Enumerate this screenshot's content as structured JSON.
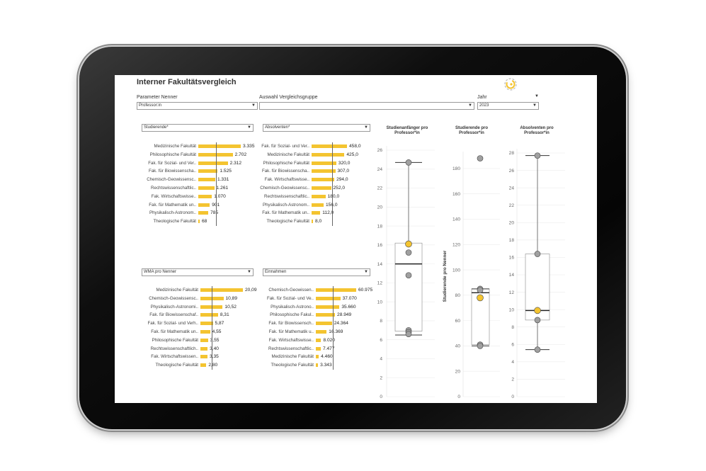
{
  "header": {
    "title": "Interner Fakultätsvergleich"
  },
  "params": {
    "nenner_label": "Parameter Nenner",
    "nenner_value": "Professor:in",
    "gruppe_label": "Auswahl Vergleichsgruppe",
    "gruppe_value": "",
    "jahr_label": "Jahr",
    "jahr_value": "2023"
  },
  "panels": {
    "studierende": {
      "selector": "Studierende*",
      "rows": [
        {
          "label": "Medizinische Fakultät",
          "value": "3.335",
          "num": 3335
        },
        {
          "label": "Philosophische Fakultät",
          "value": "2.702",
          "num": 2702
        },
        {
          "label": "Fak. für Sozial- und Ver..",
          "value": "2.312",
          "num": 2312
        },
        {
          "label": "Fak. für Biowissenscha..",
          "value": "1.525",
          "num": 1525
        },
        {
          "label": "Chemisch-Geowissensc..",
          "value": "1.331",
          "num": 1331
        },
        {
          "label": "Rechtswissenschaftlic..",
          "value": "1.261",
          "num": 1261
        },
        {
          "label": "Fak. Wirtschaftswisse..",
          "value": "1.070",
          "num": 1070
        },
        {
          "label": "Fak. für Mathematik un..",
          "value": "901",
          "num": 901
        },
        {
          "label": "Physikalisch-Astronom..",
          "value": "785",
          "num": 785
        },
        {
          "label": "Theologische Fakultät",
          "value": "68",
          "num": 68
        }
      ]
    },
    "absolventen": {
      "selector": "Absolventen*",
      "rows": [
        {
          "label": "Fak. für Sozial- und Ver..",
          "value": "458,0",
          "num": 458
        },
        {
          "label": "Medizinische Fakultät",
          "value": "425,0",
          "num": 425
        },
        {
          "label": "Philosophische Fakultät",
          "value": "320,0",
          "num": 320
        },
        {
          "label": "Fak. für Biowissenscha..",
          "value": "307,0",
          "num": 307
        },
        {
          "label": "Fak. Wirtschaftswisse..",
          "value": "294,0",
          "num": 294
        },
        {
          "label": "Chemisch-Geowissensc..",
          "value": "252,0",
          "num": 252
        },
        {
          "label": "Rechtswissenschaftlic..",
          "value": "180,0",
          "num": 180
        },
        {
          "label": "Physikalisch-Astronom..",
          "value": "156,0",
          "num": 156
        },
        {
          "label": "Fak. für Mathematik un..",
          "value": "112,0",
          "num": 112
        },
        {
          "label": "Theologische Fakultät",
          "value": "8,0",
          "num": 8
        }
      ]
    },
    "wma": {
      "selector": "WMA pro Nenner",
      "rows": [
        {
          "label": "Medizinische Fakultät",
          "value": "20,09",
          "num": 20.09
        },
        {
          "label": "Chemisch-Geowissensc..",
          "value": "10,89",
          "num": 10.89
        },
        {
          "label": "Physikalisch-Astronomi..",
          "value": "10,52",
          "num": 10.52
        },
        {
          "label": "Fak. für Biowissenschaf..",
          "value": "8,31",
          "num": 8.31
        },
        {
          "label": "Fak. für Sozial- und Verh..",
          "value": "5,87",
          "num": 5.87
        },
        {
          "label": "Fak. für Mathematik un..",
          "value": "4,55",
          "num": 4.55
        },
        {
          "label": "Philosophische Fakultät",
          "value": "3,55",
          "num": 3.55
        },
        {
          "label": "Rechtswissenschaftlich..",
          "value": "3,40",
          "num": 3.4
        },
        {
          "label": "Fak. Wirtschaftswissen..",
          "value": "3,35",
          "num": 3.35
        },
        {
          "label": "Theologische Fakultät",
          "value": "2,80",
          "num": 2.8
        }
      ]
    },
    "einnahmen": {
      "selector": "Einnahmen",
      "rows": [
        {
          "label": "Chemisch-Geowissen..",
          "value": "60.975",
          "num": 60975
        },
        {
          "label": "Fak. für Sozial- und Ve..",
          "value": "37.070",
          "num": 37070
        },
        {
          "label": "Physikalisch-Astrono..",
          "value": "35.660",
          "num": 35660
        },
        {
          "label": "Philosophische Fakul..",
          "value": "28.949",
          "num": 28949
        },
        {
          "label": "Fak. für Biowissensch..",
          "value": "24.364",
          "num": 24364
        },
        {
          "label": "Fak. für Mathematik u..",
          "value": "16.369",
          "num": 16369
        },
        {
          "label": "Fak. Wirtschaftswisse..",
          "value": "8.020",
          "num": 8020
        },
        {
          "label": "Rechtswissenschaftlic..",
          "value": "7.477",
          "num": 7477
        },
        {
          "label": "Medizinische Fakultät",
          "value": "4.460",
          "num": 4460
        },
        {
          "label": "Theologische Fakultät",
          "value": "3.343",
          "num": 3343
        }
      ]
    }
  },
  "chart_data": [
    {
      "type": "boxplot",
      "title": "Studienanfänger pro Professor*in",
      "ylim": [
        0,
        26
      ],
      "yticks": [
        "0",
        "2",
        "4",
        "6",
        "8",
        "10",
        "12",
        "14",
        "16",
        "18",
        "20",
        "22",
        "24",
        "26"
      ],
      "box": {
        "min": 6.5,
        "q1": 6.9,
        "median": 14.0,
        "q3": 16.2,
        "max": 24.7
      },
      "points": [
        24.7,
        16.1,
        15.2,
        12.8,
        7.0,
        6.8,
        6.6
      ],
      "highlight": 16.1
    },
    {
      "type": "boxplot",
      "title": "Studierende pro Professor*in",
      "ylabel": "Studierende pro Nenner",
      "ylim": [
        0,
        190
      ],
      "yticks": [
        "0",
        "20",
        "40",
        "60",
        "80",
        "100",
        "120",
        "140",
        "160",
        "180"
      ],
      "box": {
        "min": 40,
        "q1": 41,
        "median": 82,
        "q3": 85,
        "max": 85
      },
      "points": [
        188,
        85,
        84,
        78,
        41,
        40
      ],
      "highlight": 78
    },
    {
      "type": "boxplot",
      "title": "Absolventen pro Professor*in",
      "ylim": [
        0,
        28
      ],
      "yticks": [
        "0",
        "2",
        "4",
        "6",
        "8",
        "10",
        "12",
        "14",
        "16",
        "18",
        "20",
        "22",
        "24",
        "26",
        "28"
      ],
      "box": {
        "min": 5.4,
        "q1": 8.8,
        "median": 9.9,
        "q3": 16.4,
        "max": 27.7
      },
      "points": [
        27.7,
        16.4,
        9.9,
        8.8,
        5.4
      ],
      "highlight": 9.9
    }
  ],
  "colors": {
    "accent": "#f4c430",
    "point": "#a0a0a0",
    "highlight": "#f4c430"
  }
}
